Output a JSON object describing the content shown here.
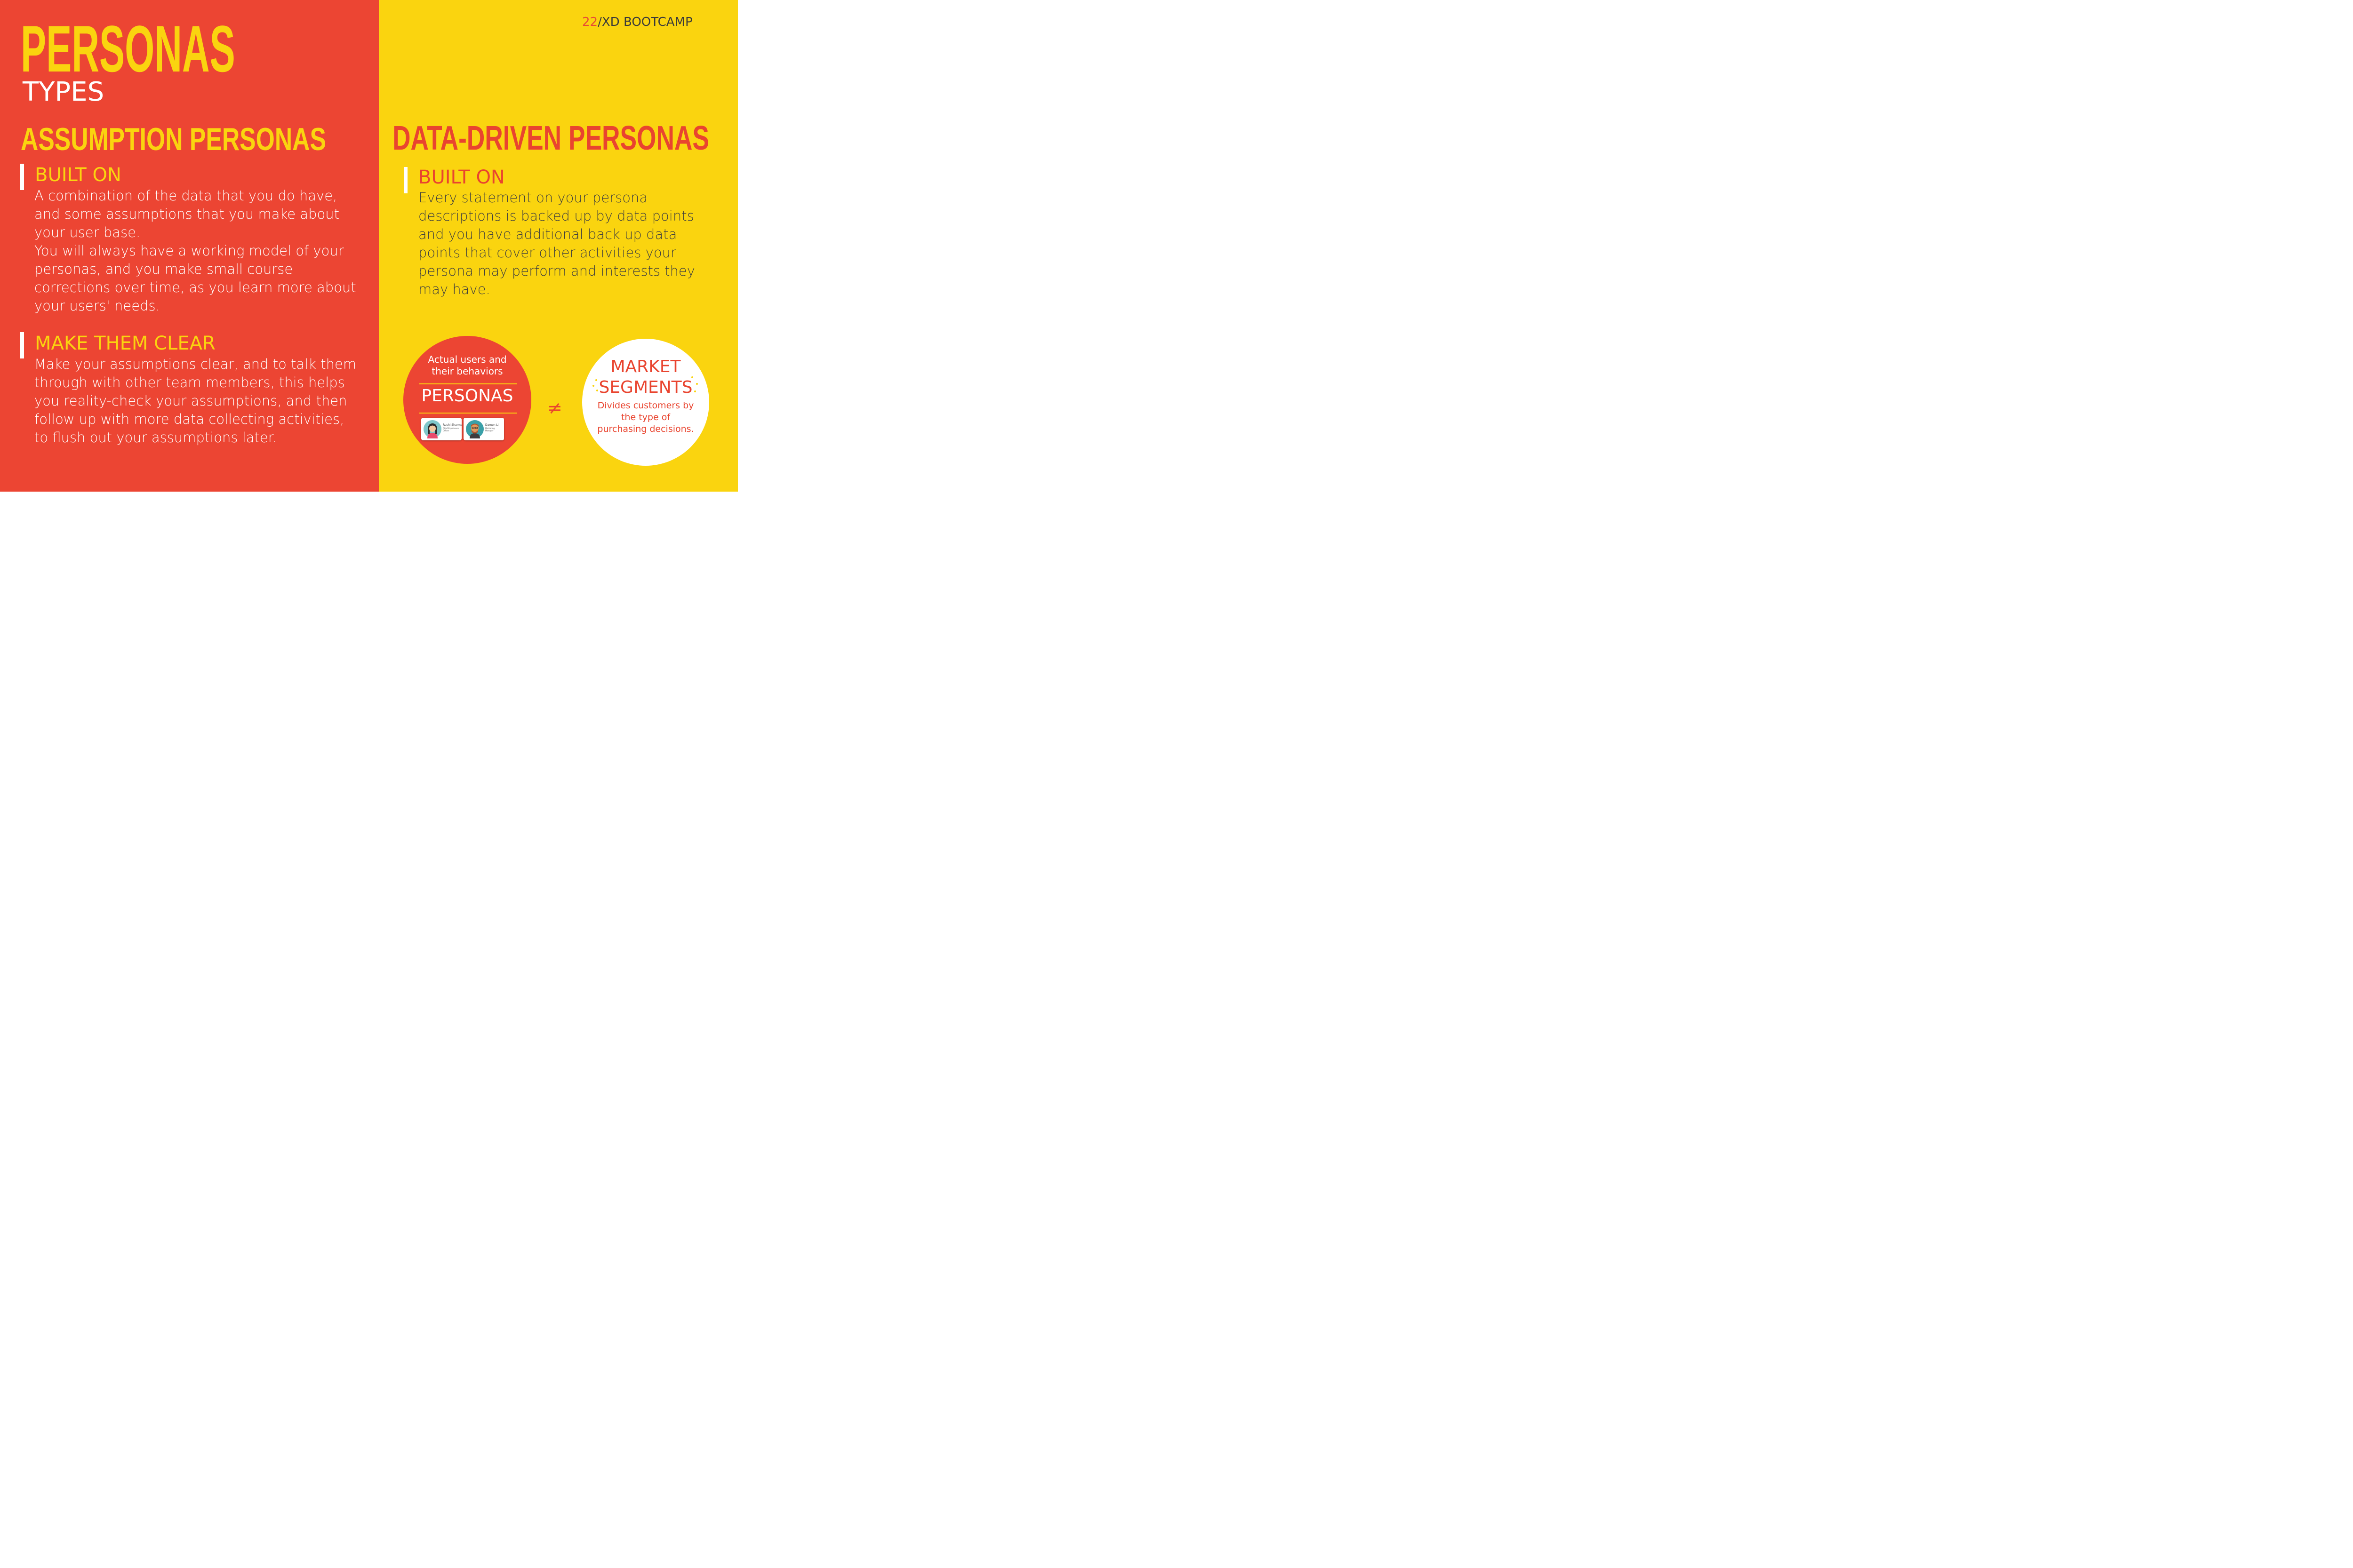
{
  "header": {
    "title": "PERSONAS",
    "subtitle": "TYPES",
    "brand_number": "22",
    "brand_text": "/XD BOOTCAMP"
  },
  "left": {
    "heading": "ASSUMPTION PERSONAS",
    "sections": [
      {
        "title": "BUILT ON",
        "lines": [
          "A combination of the data that you do have,",
          "and some assumptions that you make about",
          "your user base.",
          "You will always have a working model of your",
          "personas, and you make small course",
          "corrections over time, as you learn more about",
          "your users' needs."
        ]
      },
      {
        "title": "MAKE THEM CLEAR",
        "lines": [
          "Make your assumptions clear, and to talk them",
          "through with other team members, this helps",
          "you reality-check your assumptions, and then",
          "follow up with more data collecting activities,",
          "to flush out your assumptions later."
        ]
      }
    ]
  },
  "right": {
    "heading": "DATA-DRIVEN PERSONAS",
    "section": {
      "title": "BUILT ON",
      "lines": [
        "Every statement on your persona",
        "descriptions is backed up by data points",
        "and you have additional back up data",
        "points that cover other activities your",
        "persona may perform and interests they",
        "may have."
      ]
    }
  },
  "comparison": {
    "personas": {
      "caption": "Actual users and\ntheir behaviors",
      "title": "PERSONAS",
      "cards": [
        {
          "name": "Ruchi Sharma",
          "role": "Chief Experience Officer"
        },
        {
          "name": "Damen Li",
          "role": "Marketing Manager"
        }
      ]
    },
    "operator": "≠",
    "segments": {
      "title": "MARKET\nSEGMENTS",
      "description": "Divides customers by\nthe type of\npurchasing decisions."
    }
  },
  "colors": {
    "red": "#ec4533",
    "yellow": "#fad40f",
    "white": "#ffffff",
    "dark_text": "#3f3f3f"
  }
}
